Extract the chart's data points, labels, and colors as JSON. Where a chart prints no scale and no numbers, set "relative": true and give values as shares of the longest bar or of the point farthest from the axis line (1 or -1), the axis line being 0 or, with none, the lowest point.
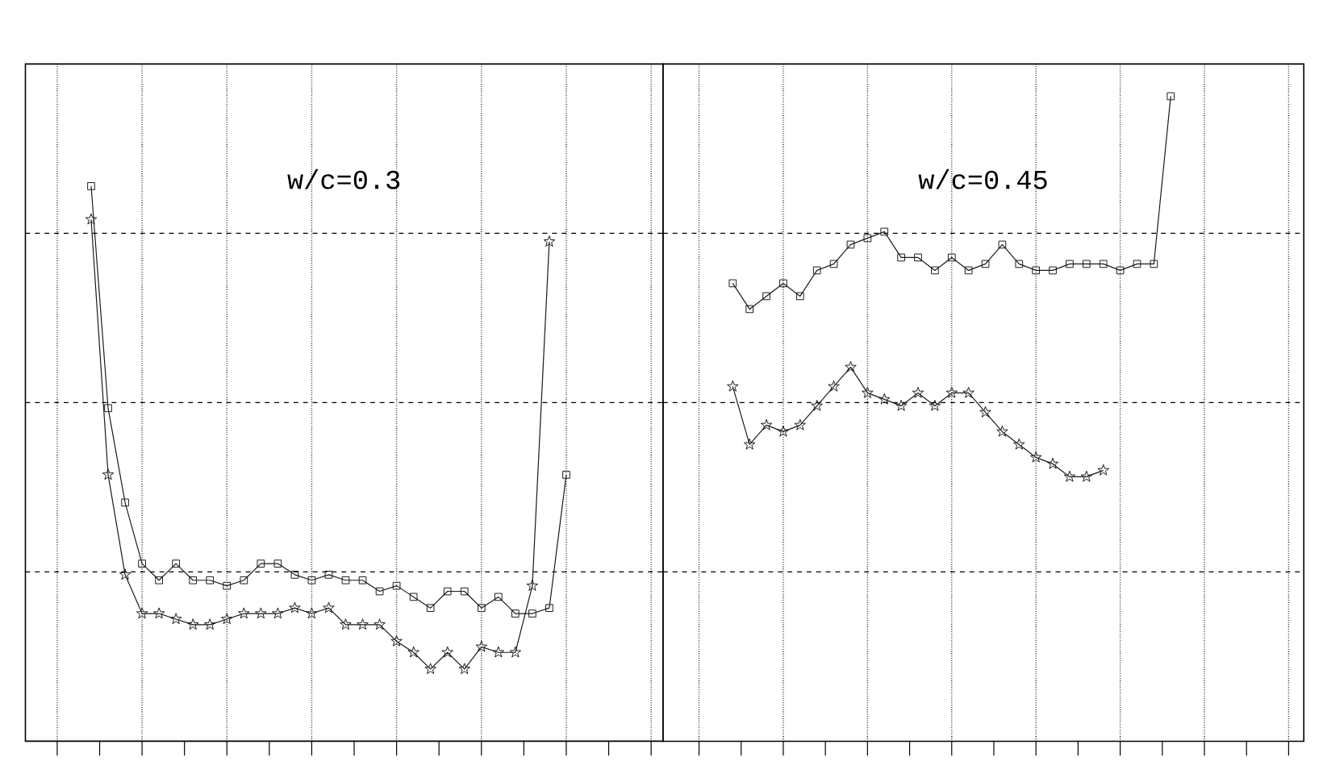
{
  "chart_data": [
    {
      "type": "line",
      "relative": true,
      "annotations": [
        "w/c=0.3"
      ],
      "grid": true,
      "categories": [
        null,
        null,
        null,
        null,
        null,
        null,
        null,
        null,
        null,
        null,
        null,
        null,
        null,
        null,
        null,
        null,
        null,
        null,
        null,
        null,
        null,
        null,
        null,
        null,
        null,
        null,
        null,
        null,
        null,
        null,
        null,
        null,
        null,
        null,
        null,
        null
      ],
      "series": [
        {
          "color": "#1a1a1a",
          "marker": "square",
          "values": [
            null,
            null,
            1,
            0.6,
            0.43,
            0.32,
            0.29,
            0.32,
            0.29,
            0.29,
            0.28,
            0.29,
            0.32,
            0.32,
            0.3,
            0.29,
            0.3,
            0.29,
            0.29,
            0.27,
            0.28,
            0.26,
            0.24,
            0.27,
            0.27,
            0.24,
            0.26,
            0.23,
            0.23,
            0.24,
            0.48,
            null,
            null,
            null,
            null,
            null
          ]
        },
        {
          "color": "#1a1a1a",
          "marker": "star",
          "values": [
            null,
            null,
            0.94,
            0.48,
            0.3,
            0.23,
            0.23,
            0.22,
            0.21,
            0.21,
            0.22,
            0.23,
            0.23,
            0.23,
            0.24,
            0.23,
            0.24,
            0.21,
            0.21,
            0.21,
            0.18,
            0.16,
            0.13,
            0.16,
            0.13,
            0.17,
            0.16,
            0.16,
            0.28,
            0.9,
            null,
            null,
            null,
            null,
            null,
            null
          ]
        }
      ]
    },
    {
      "type": "line",
      "relative": true,
      "annotations": [
        "w/c=0.45"
      ],
      "grid": true,
      "categories": [
        null,
        null,
        null,
        null,
        null,
        null,
        null,
        null,
        null,
        null,
        null,
        null,
        null,
        null,
        null,
        null,
        null,
        null,
        null,
        null,
        null,
        null,
        null,
        null,
        null,
        null,
        null,
        null,
        null,
        null,
        null,
        null,
        null,
        null,
        null,
        null
      ],
      "series": [
        {
          "color": "#1a1a1a",
          "marker": "square",
          "values": [
            null,
            null,
            0.71,
            0.67,
            0.69,
            0.71,
            0.69,
            0.73,
            0.74,
            0.77,
            0.78,
            0.79,
            0.75,
            0.75,
            0.73,
            0.75,
            0.73,
            0.74,
            0.77,
            0.74,
            0.73,
            0.73,
            0.74,
            0.74,
            0.74,
            0.73,
            0.74,
            0.74,
            1,
            null,
            null,
            null,
            null,
            null,
            null,
            null
          ]
        },
        {
          "color": "#1a1a1a",
          "marker": "star",
          "values": [
            null,
            null,
            0.55,
            0.46,
            0.49,
            0.48,
            0.49,
            0.52,
            0.55,
            0.58,
            0.54,
            0.53,
            0.52,
            0.54,
            0.52,
            0.54,
            0.54,
            0.51,
            0.48,
            0.46,
            0.44,
            0.43,
            0.41,
            0.41,
            0.42,
            null,
            null,
            null,
            null,
            null,
            null,
            null,
            null,
            null,
            null,
            null
          ]
        }
      ]
    }
  ]
}
